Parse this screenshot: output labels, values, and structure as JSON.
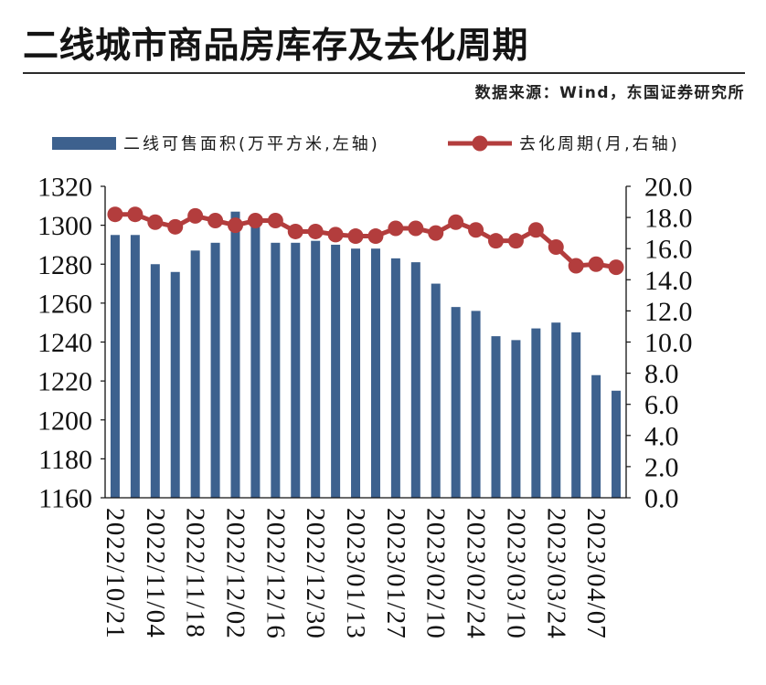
{
  "source": "数据来源：Wind，东国证券研究所",
  "colors": {
    "bar": "#3d618e",
    "line": "#b33d3d",
    "axis": "#111111"
  },
  "chart_data": {
    "type": "bar",
    "title": "二线城市商品房库存及去化周期",
    "categories": [
      "2022/10/21",
      "",
      "2022/11/04",
      "",
      "2022/11/18",
      "",
      "2022/12/02",
      "",
      "2022/12/16",
      "",
      "2022/12/30",
      "",
      "2023/01/13",
      "",
      "2023/01/27",
      "",
      "2023/02/10",
      "",
      "2023/02/24",
      "",
      "2023/03/10",
      "",
      "2023/03/24",
      "",
      "2023/04/07",
      ""
    ],
    "series": [
      {
        "name": "二线可售面积(万平方米,左轴)",
        "type": "bar",
        "y_axis": "left",
        "values": [
          1295,
          1295,
          1280,
          1276,
          1287,
          1291,
          1307,
          1300,
          1291,
          1291,
          1292,
          1290,
          1288,
          1288,
          1283,
          1281,
          1270,
          1258,
          1256,
          1243,
          1241,
          1247,
          1250,
          1245,
          1223,
          1215
        ]
      },
      {
        "name": "去化周期(月,右轴)",
        "type": "line",
        "y_axis": "right",
        "values": [
          18.2,
          18.2,
          17.7,
          17.4,
          18.1,
          17.8,
          17.5,
          17.8,
          17.8,
          17.1,
          17.1,
          16.9,
          16.8,
          16.8,
          17.3,
          17.3,
          17.0,
          17.7,
          17.2,
          16.5,
          16.5,
          17.2,
          16.1,
          14.9,
          15.0,
          14.8
        ]
      }
    ],
    "y_left": {
      "min": 1160,
      "max": 1320,
      "ticks": [
        "1160",
        "1180",
        "1200",
        "1220",
        "1240",
        "1260",
        "1280",
        "1300",
        "1320"
      ]
    },
    "y_right": {
      "min": 0,
      "max": 20,
      "ticks": [
        "0.0",
        "2.0",
        "4.0",
        "6.0",
        "8.0",
        "10.0",
        "12.0",
        "14.0",
        "16.0",
        "18.0",
        "20.0"
      ]
    },
    "legend": "top",
    "grid": false
  }
}
